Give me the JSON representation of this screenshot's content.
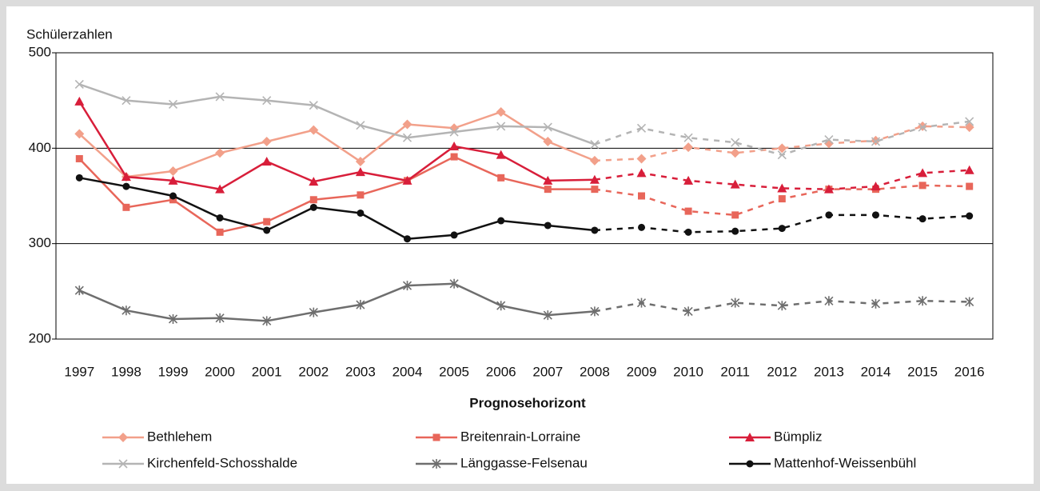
{
  "chart_data": {
    "type": "line",
    "y_label": "Schülerzahlen",
    "x_label": "Prognosehorizont",
    "categories": [
      "1997",
      "1998",
      "1999",
      "2000",
      "2001",
      "2002",
      "2003",
      "2004",
      "2005",
      "2006",
      "2007",
      "2008",
      "2009",
      "2010",
      "2011",
      "2012",
      "2013",
      "2014",
      "2015",
      "2016"
    ],
    "dashed_from": "2008",
    "ylim": [
      200,
      500
    ],
    "yticks": [
      200,
      300,
      400,
      500
    ],
    "grid": true,
    "series": [
      {
        "name": "Bethlehem",
        "color": "#f2a08a",
        "marker": "diamond",
        "values": [
          415,
          370,
          376,
          395,
          407,
          419,
          386,
          425,
          421,
          438,
          407,
          387,
          389,
          401,
          395,
          400,
          405,
          408,
          423,
          422
        ]
      },
      {
        "name": "Breitenrain-Lorraine",
        "color": "#e8665a",
        "marker": "square",
        "values": [
          389,
          338,
          346,
          312,
          323,
          346,
          351,
          366,
          391,
          369,
          357,
          357,
          350,
          334,
          330,
          347,
          357,
          357,
          361,
          360
        ]
      },
      {
        "name": "Bümpliz",
        "color": "#d81e3a",
        "marker": "triangle",
        "values": [
          449,
          370,
          366,
          357,
          386,
          365,
          375,
          366,
          402,
          393,
          366,
          367,
          374,
          366,
          362,
          358,
          357,
          360,
          374,
          377
        ]
      },
      {
        "name": "Kirchenfeld-Schosshalde",
        "color": "#b4b4b4",
        "marker": "x",
        "values": [
          467,
          450,
          446,
          454,
          450,
          445,
          424,
          411,
          417,
          423,
          422,
          404,
          421,
          411,
          406,
          393,
          409,
          407,
          422,
          428
        ]
      },
      {
        "name": "Länggasse-Felsenau",
        "color": "#6e6e6e",
        "marker": "star",
        "values": [
          251,
          230,
          221,
          222,
          219,
          228,
          236,
          256,
          258,
          235,
          225,
          229,
          238,
          229,
          238,
          235,
          240,
          237,
          240,
          239
        ]
      },
      {
        "name": "Mattenhof-Weissenbühl",
        "color": "#111111",
        "marker": "circle",
        "values": [
          369,
          360,
          350,
          327,
          314,
          338,
          332,
          305,
          309,
          324,
          319,
          314,
          317,
          312,
          313,
          316,
          330,
          330,
          326,
          329
        ]
      }
    ]
  }
}
